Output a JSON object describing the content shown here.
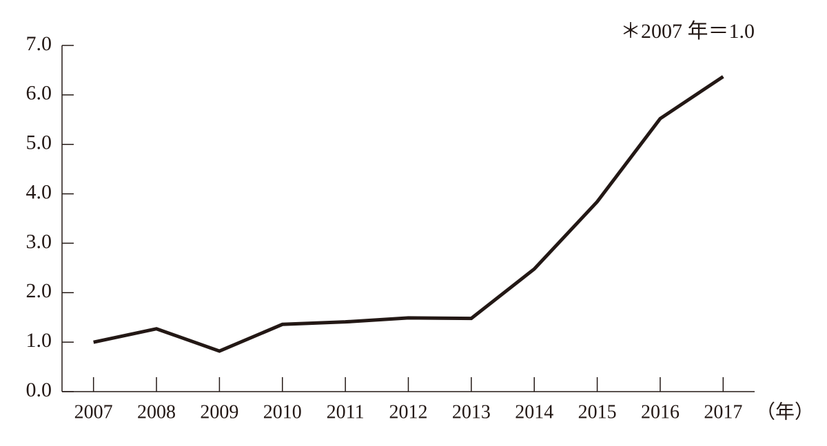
{
  "chart_data": {
    "type": "line",
    "annotation": "＊2007 年＝1.0",
    "x_axis_label": "（年）",
    "categories": [
      "2007",
      "2008",
      "2009",
      "2010",
      "2011",
      "2012",
      "2013",
      "2014",
      "2015",
      "2016",
      "2017"
    ],
    "series": [
      {
        "color": "#231815",
        "values": [
          1.0,
          1.27,
          0.82,
          1.36,
          1.41,
          1.49,
          1.48,
          2.48,
          3.84,
          5.52,
          6.37
        ]
      }
    ],
    "ylim": [
      0,
      7
    ],
    "yticks": [
      {
        "value": 0,
        "label": "0.0"
      },
      {
        "value": 1,
        "label": "1.0"
      },
      {
        "value": 2,
        "label": "2.0"
      },
      {
        "value": 3,
        "label": "3.0"
      },
      {
        "value": 4,
        "label": "4.0"
      },
      {
        "value": 5,
        "label": "5.0"
      },
      {
        "value": 6,
        "label": "6.0"
      },
      {
        "value": 7,
        "label": "7.0"
      }
    ],
    "grid": false
  }
}
